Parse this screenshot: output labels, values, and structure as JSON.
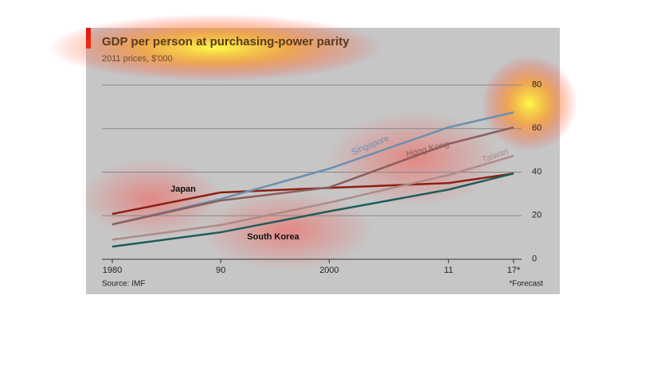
{
  "chart_data": {
    "type": "line",
    "title": "GDP per person at purchasing-power parity",
    "subtitle": "2011 prices, $'000",
    "source": "Source: IMF",
    "note": "*Forecast",
    "x": [
      1980,
      1990,
      2000,
      2011,
      2017
    ],
    "xlim": [
      1980,
      2017
    ],
    "xticks": [
      1980,
      {
        "value": 1990,
        "label": "90"
      },
      2000,
      {
        "value": 2011,
        "label": "11"
      },
      {
        "value": 2017,
        "label": "17*"
      }
    ],
    "ylim": [
      0,
      80
    ],
    "yticks": [
      0,
      20,
      40,
      60,
      80
    ],
    "grid": true,
    "series": [
      {
        "name": "Japan",
        "color": "#8e1d12",
        "values": [
          20.8,
          30.7,
          32.8,
          35,
          39.4
        ]
      },
      {
        "name": "Singapore",
        "color": "#6d8fae",
        "values": [
          16,
          27.7,
          41.6,
          60.6,
          67.5
        ]
      },
      {
        "name": "Hong Kong",
        "color": "#8c5e5c",
        "values": [
          16,
          27,
          33,
          53,
          60.6
        ]
      },
      {
        "name": "Taiwan",
        "color": "#ad8b8b",
        "values": [
          9,
          15.7,
          26,
          38.7,
          47.5
        ]
      },
      {
        "name": "South Korea",
        "color": "#1f5c5a",
        "values": [
          5.8,
          12.4,
          22,
          32,
          39.4
        ]
      }
    ]
  }
}
